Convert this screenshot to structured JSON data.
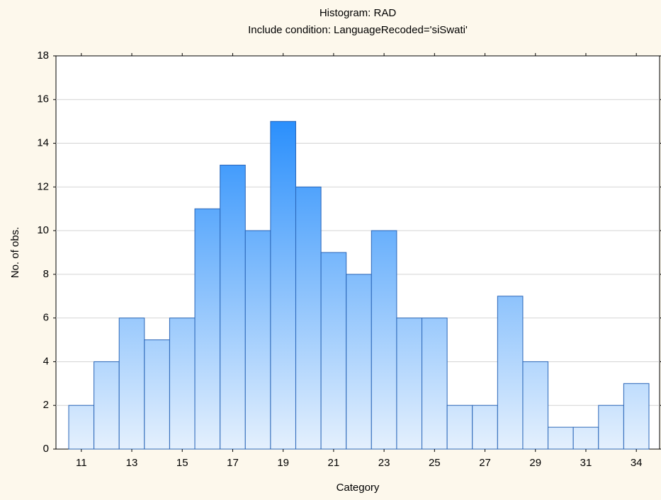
{
  "chart_data": {
    "type": "bar",
    "title": "Histogram: RAD",
    "subtitle": "Include condition: LanguageRecoded='siSwati'",
    "x_label": "Category",
    "y_label": "No. of obs.",
    "categories": [
      "11",
      null,
      "13",
      null,
      "15",
      null,
      "17",
      null,
      "19",
      null,
      "21",
      null,
      "23",
      null,
      "25",
      null,
      "27",
      null,
      "29",
      null,
      "31",
      null,
      "34"
    ],
    "values": [
      2,
      4,
      6,
      5,
      6,
      11,
      13,
      10,
      15,
      12,
      9,
      8,
      10,
      6,
      6,
      2,
      2,
      7,
      4,
      1,
      1,
      2,
      3
    ],
    "color": "#1e8fff",
    "ylim": [
      0,
      18
    ],
    "yticks": [
      0,
      2,
      4,
      6,
      8,
      10,
      12,
      14,
      16,
      18
    ],
    "grid": true
  }
}
